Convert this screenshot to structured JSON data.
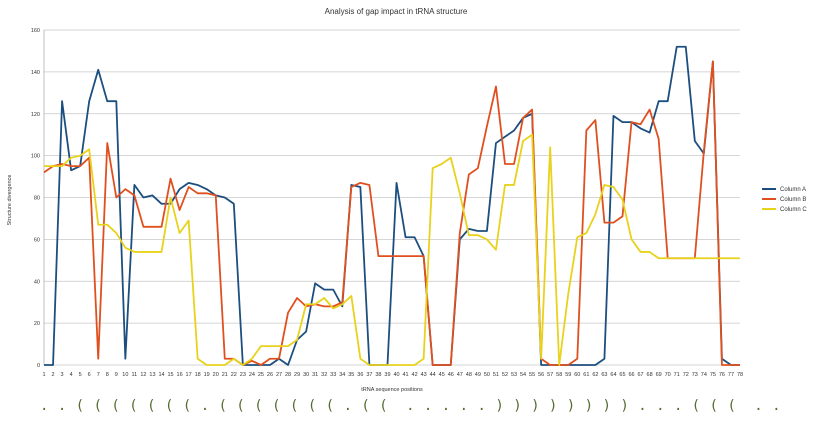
{
  "chart_data": {
    "type": "line",
    "title": "Analysis of gap impact in tRNA structure",
    "xlabel": "tRNA sequence positions",
    "ylabel": "Structure divergence",
    "ylim": [
      0,
      160
    ],
    "yticks": [
      0,
      20,
      40,
      60,
      80,
      100,
      120,
      140,
      160
    ],
    "grid": true,
    "legend_position": "right",
    "categories": [
      "1",
      "2",
      "3",
      "4",
      "5",
      "6",
      "7",
      "8",
      "9",
      "10",
      "11",
      "12",
      "13",
      "14",
      "15",
      "16",
      "17",
      "18",
      "19",
      "20",
      "21",
      "22",
      "23",
      "24",
      "25",
      "26",
      "27",
      "28",
      "29",
      "30",
      "31",
      "32",
      "33",
      "34",
      "35",
      "36",
      "37",
      "38",
      "39",
      "40",
      "41",
      "42",
      "43",
      "44",
      "45",
      "46",
      "47",
      "48",
      "49",
      "50",
      "51",
      "52",
      "53",
      "54",
      "55",
      "56",
      "57",
      "58",
      "59",
      "60",
      "61",
      "62",
      "63",
      "64",
      "65",
      "66",
      "67",
      "68",
      "69",
      "70",
      "71",
      "72",
      "73",
      "74",
      "75",
      "76",
      "77",
      "78"
    ],
    "series": [
      {
        "name": "Column A",
        "color": "#1c4f7f",
        "values": [
          0,
          0,
          126,
          93,
          95,
          126,
          141,
          126,
          126,
          3,
          86,
          80,
          81,
          77,
          77,
          84,
          87,
          86,
          84,
          81,
          80,
          77,
          0,
          0,
          0,
          0,
          3,
          0,
          12,
          16,
          39,
          36,
          36,
          28,
          86,
          85,
          0,
          0,
          0,
          87,
          61,
          61,
          52,
          0,
          0,
          0,
          60,
          65,
          64,
          64,
          106,
          109,
          112,
          118,
          120,
          0,
          0,
          0,
          0,
          0,
          0,
          0,
          3,
          119,
          116,
          116,
          113,
          111,
          126,
          126,
          152,
          152,
          107,
          101,
          145,
          3,
          0,
          0
        ]
      },
      {
        "name": "Column B",
        "color": "#e0501f",
        "values": [
          92,
          95,
          96,
          95,
          95,
          99,
          3,
          106,
          80,
          84,
          81,
          66,
          66,
          66,
          89,
          74,
          85,
          82,
          82,
          81,
          3,
          3,
          0,
          2,
          0,
          3,
          3,
          25,
          32,
          28,
          29,
          28,
          28,
          30,
          85,
          87,
          86,
          52,
          52,
          52,
          52,
          52,
          52,
          0,
          0,
          0,
          63,
          91,
          94,
          114,
          133,
          96,
          96,
          118,
          122,
          3,
          0,
          0,
          0,
          3,
          112,
          117,
          68,
          68,
          71,
          116,
          115,
          122,
          108,
          51,
          51,
          51,
          51,
          102,
          145,
          0,
          0,
          0
        ]
      },
      {
        "name": "Column C",
        "color": "#e8d21c",
        "values": [
          95,
          95,
          95,
          99,
          100,
          103,
          67,
          67,
          63,
          56,
          54,
          54,
          54,
          54,
          80,
          63,
          69,
          3,
          0,
          0,
          0,
          3,
          0,
          3,
          9,
          9,
          9,
          9,
          12,
          29,
          29,
          32,
          27,
          29,
          33,
          3,
          0,
          0,
          0,
          0,
          0,
          0,
          3,
          94,
          96,
          99,
          82,
          62,
          62,
          60,
          55,
          86,
          86,
          107,
          110,
          3,
          104,
          0,
          34,
          61,
          63,
          72,
          86,
          85,
          79,
          60,
          54,
          54,
          51,
          51,
          51,
          51,
          51,
          51,
          51,
          51,
          51,
          51
        ]
      }
    ]
  },
  "structure_string": ". . ( ( ( ( ( ( ( . ( ( ( ( ( ( ( . ( (  . . . . . ) ) ) ) ) ) ) ) . . . ( ( (  . . . . ) ) ) . ( ( ( ( ( ( . . . . . . .  ) ) ) ) ) ) ) ) ) ) ) ) . . ."
}
